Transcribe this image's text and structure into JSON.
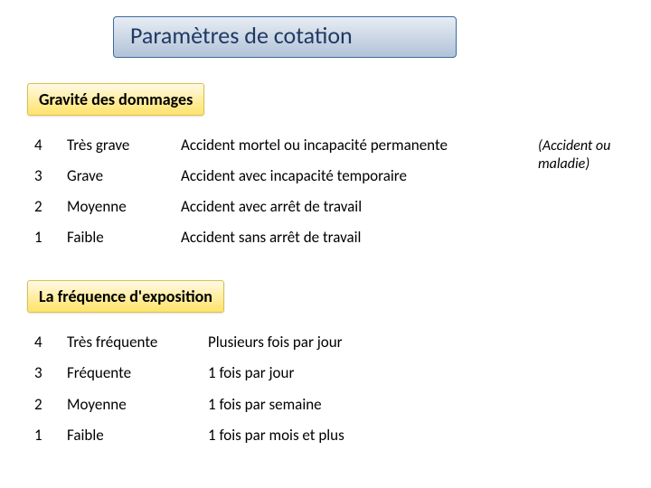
{
  "title": "Paramètres de cotation",
  "colors": {
    "title_text": "#203864",
    "title_bg_top": "#e8edf3",
    "title_bg_bottom": "#b1c2d8",
    "title_border": "#3c6aa0",
    "section_bg_top": "#fff9e6",
    "section_bg_bottom": "#ffe36b",
    "section_border": "#d9c24a",
    "page_bg": "#ffffff",
    "text": "#000000"
  },
  "sideNote": "(Accident ou maladie)",
  "sections": {
    "severity": {
      "label": "Gravité des dommages",
      "rows": [
        {
          "num": "4",
          "level": "Très grave",
          "desc": "Accident mortel ou incapacité permanente"
        },
        {
          "num": "3",
          "level": "Grave",
          "desc": "Accident avec incapacité temporaire"
        },
        {
          "num": "2",
          "level": "Moyenne",
          "desc": "Accident avec arrêt de travail"
        },
        {
          "num": "1",
          "level": "Faible",
          "desc": "Accident sans arrêt de travail"
        }
      ]
    },
    "frequency": {
      "label": "La fréquence d'exposition",
      "rows": [
        {
          "num": "4",
          "level": "Très fréquente",
          "desc": "Plusieurs fois par jour"
        },
        {
          "num": "3",
          "level": "Fréquente",
          "desc": "1 fois par jour"
        },
        {
          "num": "2",
          "level": "Moyenne",
          "desc": "1 fois par semaine"
        },
        {
          "num": "1",
          "level": "Faible",
          "desc": "1 fois par mois et plus"
        }
      ]
    }
  }
}
